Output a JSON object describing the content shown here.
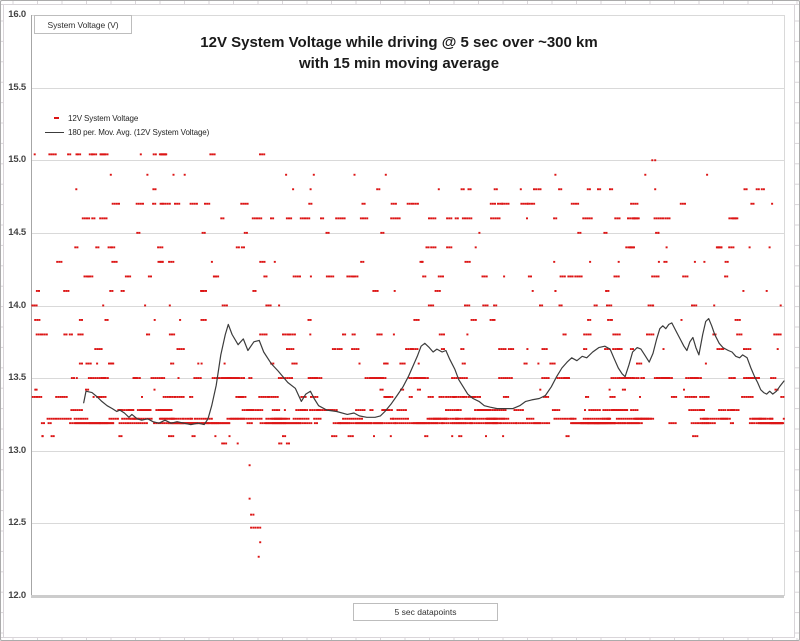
{
  "chart": {
    "title_line1": "12V System Voltage while driving @ 5 sec over ~300 km",
    "title_line2": "with 15 min moving average",
    "floating_label": "System Voltage (V)",
    "x_axis_label": "5 sec datapoints",
    "legend": [
      {
        "label": "12V System Voltage",
        "marker": "red-dash"
      },
      {
        "label": "180 per. Mov. Avg. (12V System Voltage)",
        "marker": "black-line"
      }
    ],
    "colors": {
      "scatter": "#dc1414",
      "avg_line": "#3c3c3c",
      "gridline": "#d9d9d9",
      "y_axis_line": "#a6a6a6",
      "x_axis_line": "#cccccc",
      "box_border": "#bdbdbd",
      "sheet_grid": "#d9d5d9"
    }
  },
  "chart_data": {
    "type": "scatter",
    "title": "12V System Voltage while driving @ 5 sec over ~300 km with 15 min moving average",
    "xlabel": "5 sec datapoints",
    "ylabel": "System Voltage (V)",
    "ylim": [
      12.0,
      16.0
    ],
    "ytick_values": [
      16.0,
      15.5,
      15.0,
      14.5,
      14.0,
      13.5,
      13.0,
      12.5,
      12.0
    ],
    "ytick_labels": [
      "16.0",
      "15.5",
      "15.0",
      "14.5",
      "14.0",
      "13.5",
      "13.0",
      "12.5",
      "12.0"
    ],
    "grid": "horizontal-only",
    "legend_position": "top-left-inside",
    "seed": 7,
    "series": [
      {
        "name": "12V System Voltage",
        "type": "scatter",
        "note": "raw 5-sec samples cluster on discrete voltage rows; v=volts, n=cluster count, run=max dots per dash cluster, xr=x-range fraction of plot",
        "levels": [
          {
            "v": 15.04,
            "n": 16,
            "run": 4,
            "xr": [
              0.0,
              0.31
            ]
          },
          {
            "v": 15.0,
            "n": 2,
            "run": 1,
            "xr": [
              0.78,
              0.85
            ]
          },
          {
            "v": 14.9,
            "n": 11,
            "run": 1,
            "xr": [
              0.02,
              0.98
            ]
          },
          {
            "v": 14.8,
            "n": 20,
            "run": 2,
            "xr": [
              0.05,
              1.0
            ]
          },
          {
            "v": 14.7,
            "n": 26,
            "run": 4,
            "xr": [
              0.0,
              1.0
            ]
          },
          {
            "v": 14.6,
            "n": 28,
            "run": 5,
            "xr": [
              0.0,
              1.0
            ]
          },
          {
            "v": 14.5,
            "n": 10,
            "run": 2,
            "xr": [
              0.0,
              1.0
            ]
          },
          {
            "v": 14.4,
            "n": 22,
            "run": 3,
            "xr": [
              0.0,
              1.0
            ]
          },
          {
            "v": 14.3,
            "n": 20,
            "run": 3,
            "xr": [
              0.0,
              1.0
            ]
          },
          {
            "v": 14.2,
            "n": 24,
            "run": 4,
            "xr": [
              0.0,
              1.0
            ]
          },
          {
            "v": 14.1,
            "n": 18,
            "run": 3,
            "xr": [
              0.0,
              1.0
            ]
          },
          {
            "v": 14.0,
            "n": 20,
            "run": 3,
            "xr": [
              0.0,
              1.0
            ]
          },
          {
            "v": 13.9,
            "n": 16,
            "run": 3,
            "xr": [
              0.0,
              1.0
            ]
          },
          {
            "v": 13.8,
            "n": 24,
            "run": 4,
            "xr": [
              0.0,
              1.0
            ]
          },
          {
            "v": 13.7,
            "n": 24,
            "run": 4,
            "xr": [
              0.0,
              1.0
            ]
          },
          {
            "v": 13.6,
            "n": 22,
            "run": 3,
            "xr": [
              0.0,
              1.0
            ]
          },
          {
            "v": 13.5,
            "n": 48,
            "run": 8,
            "xr": [
              0.0,
              1.0
            ]
          },
          {
            "v": 13.42,
            "n": 12,
            "run": 2,
            "xr": [
              0.0,
              1.0
            ]
          },
          {
            "v": 13.37,
            "n": 36,
            "run": 6,
            "xr": [
              0.0,
              1.0
            ]
          },
          {
            "v": 13.28,
            "n": 42,
            "run": 8,
            "xr": [
              0.0,
              1.0
            ]
          },
          {
            "v": 13.22,
            "n": 55,
            "run": 12,
            "xr": [
              0.0,
              1.0
            ]
          },
          {
            "v": 13.19,
            "n": 65,
            "run": 16,
            "xr": [
              0.0,
              1.0
            ]
          },
          {
            "v": 13.1,
            "n": 20,
            "run": 3,
            "xr": [
              0.0,
              1.0
            ]
          },
          {
            "v": 13.05,
            "n": 5,
            "run": 2,
            "xr": [
              0.24,
              0.36
            ]
          }
        ],
        "dip_points": [
          [
            0.289,
            12.9
          ],
          [
            0.289,
            12.67
          ],
          [
            0.291,
            12.56
          ],
          [
            0.294,
            12.56
          ],
          [
            0.291,
            12.47
          ],
          [
            0.294,
            12.47
          ],
          [
            0.297,
            12.47
          ],
          [
            0.3,
            12.47
          ],
          [
            0.303,
            12.47
          ],
          [
            0.303,
            12.37
          ],
          [
            0.301,
            12.27
          ]
        ]
      },
      {
        "name": "180 per. Mov. Avg. (12V System Voltage)",
        "type": "line",
        "points": [
          [
            0.07,
            13.33
          ],
          [
            0.073,
            13.41
          ],
          [
            0.081,
            13.4
          ],
          [
            0.088,
            13.37
          ],
          [
            0.094,
            13.34
          ],
          [
            0.101,
            13.31
          ],
          [
            0.108,
            13.29
          ],
          [
            0.114,
            13.27
          ],
          [
            0.118,
            13.28
          ],
          [
            0.124,
            13.26
          ],
          [
            0.13,
            13.23
          ],
          [
            0.134,
            13.25
          ],
          [
            0.141,
            13.22
          ],
          [
            0.147,
            13.21
          ],
          [
            0.155,
            13.22
          ],
          [
            0.162,
            13.2
          ],
          [
            0.17,
            13.19
          ],
          [
            0.178,
            13.21
          ],
          [
            0.186,
            13.19
          ],
          [
            0.194,
            13.2
          ],
          [
            0.203,
            13.19
          ],
          [
            0.212,
            13.18
          ],
          [
            0.222,
            13.19
          ],
          [
            0.23,
            13.18
          ],
          [
            0.235,
            13.22
          ],
          [
            0.24,
            13.31
          ],
          [
            0.246,
            13.45
          ],
          [
            0.252,
            13.66
          ],
          [
            0.258,
            13.8
          ],
          [
            0.262,
            13.87
          ],
          [
            0.267,
            13.8
          ],
          [
            0.275,
            13.73
          ],
          [
            0.282,
            13.77
          ],
          [
            0.288,
            13.69
          ],
          [
            0.296,
            13.75
          ],
          [
            0.303,
            13.76
          ],
          [
            0.309,
            13.68
          ],
          [
            0.319,
            13.6
          ],
          [
            0.328,
            13.55
          ],
          [
            0.341,
            13.47
          ],
          [
            0.351,
            13.43
          ],
          [
            0.359,
            13.34
          ],
          [
            0.365,
            13.39
          ],
          [
            0.371,
            13.41
          ],
          [
            0.376,
            13.36
          ],
          [
            0.382,
            13.31
          ],
          [
            0.393,
            13.28
          ],
          [
            0.406,
            13.27
          ],
          [
            0.42,
            13.25
          ],
          [
            0.429,
            13.26
          ],
          [
            0.436,
            13.24
          ],
          [
            0.446,
            13.23
          ],
          [
            0.457,
            13.23
          ],
          [
            0.464,
            13.24
          ],
          [
            0.47,
            13.27
          ],
          [
            0.478,
            13.32
          ],
          [
            0.486,
            13.38
          ],
          [
            0.494,
            13.44
          ],
          [
            0.501,
            13.51
          ],
          [
            0.507,
            13.58
          ],
          [
            0.513,
            13.65
          ],
          [
            0.518,
            13.72
          ],
          [
            0.523,
            13.74
          ],
          [
            0.529,
            13.71
          ],
          [
            0.534,
            13.68
          ],
          [
            0.539,
            13.7
          ],
          [
            0.546,
            13.68
          ],
          [
            0.551,
            13.69
          ],
          [
            0.556,
            13.63
          ],
          [
            0.563,
            13.56
          ],
          [
            0.568,
            13.49
          ],
          [
            0.574,
            13.44
          ],
          [
            0.58,
            13.39
          ],
          [
            0.587,
            13.36
          ],
          [
            0.595,
            13.34
          ],
          [
            0.602,
            13.31
          ],
          [
            0.61,
            13.3
          ],
          [
            0.619,
            13.29
          ],
          [
            0.629,
            13.29
          ],
          [
            0.64,
            13.29
          ],
          [
            0.649,
            13.31
          ],
          [
            0.657,
            13.34
          ],
          [
            0.665,
            13.35
          ],
          [
            0.675,
            13.36
          ],
          [
            0.683,
            13.38
          ],
          [
            0.691,
            13.44
          ],
          [
            0.698,
            13.51
          ],
          [
            0.705,
            13.57
          ],
          [
            0.712,
            13.61
          ],
          [
            0.718,
            13.64
          ],
          [
            0.725,
            13.62
          ],
          [
            0.732,
            13.65
          ],
          [
            0.738,
            13.64
          ],
          [
            0.746,
            13.68
          ],
          [
            0.754,
            13.71
          ],
          [
            0.762,
            13.72
          ],
          [
            0.769,
            13.7
          ],
          [
            0.774,
            13.64
          ],
          [
            0.78,
            13.57
          ],
          [
            0.785,
            13.53
          ],
          [
            0.789,
            13.51
          ],
          [
            0.794,
            13.59
          ],
          [
            0.799,
            13.68
          ],
          [
            0.805,
            13.71
          ],
          [
            0.81,
            13.7
          ],
          [
            0.815,
            13.66
          ],
          [
            0.821,
            13.61
          ],
          [
            0.826,
            13.67
          ],
          [
            0.831,
            13.77
          ],
          [
            0.835,
            13.84
          ],
          [
            0.839,
            13.86
          ],
          [
            0.843,
            13.84
          ],
          [
            0.847,
            13.87
          ],
          [
            0.851,
            13.88
          ],
          [
            0.857,
            13.82
          ],
          [
            0.862,
            13.77
          ],
          [
            0.867,
            13.72
          ],
          [
            0.871,
            13.69
          ],
          [
            0.875,
            13.75
          ],
          [
            0.879,
            13.78
          ],
          [
            0.883,
            13.71
          ],
          [
            0.887,
            13.66
          ],
          [
            0.892,
            13.8
          ],
          [
            0.896,
            13.89
          ],
          [
            0.9,
            13.91
          ],
          [
            0.904,
            13.86
          ],
          [
            0.908,
            13.8
          ],
          [
            0.914,
            13.74
          ],
          [
            0.919,
            13.71
          ],
          [
            0.926,
            13.69
          ],
          [
            0.931,
            13.68
          ],
          [
            0.936,
            13.65
          ],
          [
            0.941,
            13.64
          ],
          [
            0.945,
            13.66
          ],
          [
            0.951,
            13.64
          ],
          [
            0.956,
            13.57
          ],
          [
            0.961,
            13.51
          ],
          [
            0.965,
            13.47
          ],
          [
            0.969,
            13.42
          ],
          [
            0.973,
            13.4
          ],
          [
            0.977,
            13.39
          ],
          [
            0.981,
            13.41
          ],
          [
            0.985,
            13.39
          ],
          [
            0.99,
            13.41
          ],
          [
            0.994,
            13.44
          ],
          [
            1.0,
            13.48
          ]
        ]
      }
    ]
  }
}
